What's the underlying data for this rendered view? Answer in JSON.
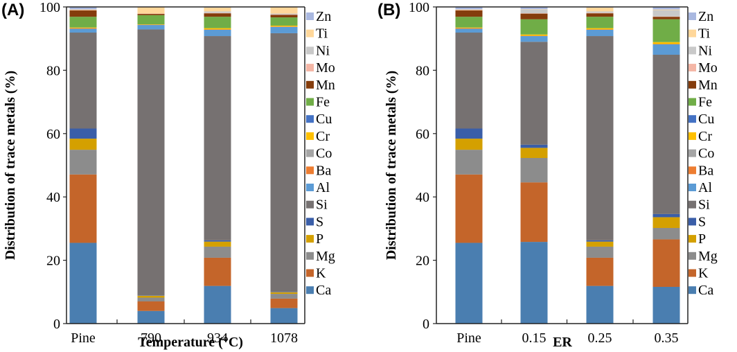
{
  "chart_data": [
    {
      "type": "bar",
      "stacked": true,
      "panel_label": "(A)",
      "title": "",
      "xlabel": "Temperature (°C)",
      "ylabel": "Distribution  of trace metals (%)",
      "ylim": [
        0,
        100
      ],
      "yticks": [
        "0",
        "20",
        "40",
        "60",
        "80",
        "100"
      ],
      "grid": false,
      "legend": "right",
      "categories": [
        "Pine",
        "790",
        "934",
        "1078"
      ],
      "series": [
        {
          "name": "Ca",
          "color": "#4a7eb0",
          "values": [
            25.5,
            4.0,
            11.9,
            4.9
          ]
        },
        {
          "name": "K",
          "color": "#c4652a",
          "values": [
            21.6,
            3.0,
            8.9,
            3.0
          ]
        },
        {
          "name": "Mg",
          "color": "#8c8c8c",
          "values": [
            7.8,
            1.2,
            3.5,
            1.5
          ]
        },
        {
          "name": "P",
          "color": "#d4a000",
          "values": [
            3.5,
            0.6,
            1.6,
            0.5
          ]
        },
        {
          "name": "S",
          "color": "#3a5ea8",
          "values": [
            3.2,
            0.1,
            0.4,
            0.1
          ]
        },
        {
          "name": "Si",
          "color": "#767171",
          "values": [
            30.3,
            84.0,
            64.5,
            81.7
          ]
        },
        {
          "name": "Al",
          "color": "#5b9bd5",
          "values": [
            1.2,
            1.4,
            2.0,
            2.0
          ]
        },
        {
          "name": "Ba",
          "color": "#ed7d31",
          "values": [
            0.2,
            0.1,
            0.1,
            0.1
          ]
        },
        {
          "name": "Co",
          "color": "#a5a5a5",
          "values": [
            0.0,
            0.0,
            0.0,
            0.0
          ]
        },
        {
          "name": "Cr",
          "color": "#ffc000",
          "values": [
            0.2,
            0.1,
            0.4,
            0.3
          ]
        },
        {
          "name": "Cu",
          "color": "#4472c4",
          "values": [
            0.0,
            0.0,
            0.0,
            0.0
          ]
        },
        {
          "name": "Fe",
          "color": "#70ad47",
          "values": [
            3.4,
            2.9,
            3.6,
            2.6
          ]
        },
        {
          "name": "Mn",
          "color": "#843c0c",
          "values": [
            2.0,
            0.4,
            1.1,
            0.8
          ]
        },
        {
          "name": "Mo",
          "color": "#f4b6a6",
          "values": [
            0.1,
            0.1,
            0.1,
            0.1
          ]
        },
        {
          "name": "Ni",
          "color": "#c9c9c9",
          "values": [
            0.0,
            0.0,
            0.5,
            0.3
          ]
        },
        {
          "name": "Ti",
          "color": "#ffd79a",
          "values": [
            0.2,
            2.0,
            1.2,
            2.1
          ]
        },
        {
          "name": "Zn",
          "color": "#a9b8e0",
          "values": [
            0.8,
            0.2,
            0.2,
            0.0
          ]
        }
      ]
    },
    {
      "type": "bar",
      "stacked": true,
      "panel_label": "(B)",
      "title": "",
      "xlabel": "ER",
      "ylabel": "Distribution  of trace metals (%)",
      "ylim": [
        0,
        100
      ],
      "yticks": [
        "0",
        "20",
        "40",
        "60",
        "80",
        "100"
      ],
      "grid": false,
      "legend": "right",
      "categories": [
        "Pine",
        "0.15",
        "0.25",
        "0.35"
      ],
      "series": [
        {
          "name": "Ca",
          "color": "#4a7eb0",
          "values": [
            25.5,
            25.8,
            11.9,
            11.6
          ]
        },
        {
          "name": "K",
          "color": "#c4652a",
          "values": [
            21.6,
            18.8,
            8.9,
            15.0
          ]
        },
        {
          "name": "Mg",
          "color": "#8c8c8c",
          "values": [
            7.8,
            7.7,
            3.5,
            3.6
          ]
        },
        {
          "name": "P",
          "color": "#d4a000",
          "values": [
            3.5,
            3.2,
            1.6,
            3.4
          ]
        },
        {
          "name": "S",
          "color": "#3a5ea8",
          "values": [
            3.2,
            1.0,
            0.4,
            1.0
          ]
        },
        {
          "name": "Si",
          "color": "#767171",
          "values": [
            30.3,
            32.5,
            64.5,
            50.3
          ]
        },
        {
          "name": "Al",
          "color": "#5b9bd5",
          "values": [
            1.2,
            1.8,
            2.0,
            3.3
          ]
        },
        {
          "name": "Ba",
          "color": "#ed7d31",
          "values": [
            0.2,
            0.1,
            0.1,
            0.1
          ]
        },
        {
          "name": "Co",
          "color": "#a5a5a5",
          "values": [
            0.0,
            0.0,
            0.0,
            0.0
          ]
        },
        {
          "name": "Cr",
          "color": "#ffc000",
          "values": [
            0.2,
            0.4,
            0.4,
            0.6
          ]
        },
        {
          "name": "Cu",
          "color": "#4472c4",
          "values": [
            0.0,
            0.0,
            0.0,
            0.0
          ]
        },
        {
          "name": "Fe",
          "color": "#70ad47",
          "values": [
            3.4,
            4.8,
            3.6,
            7.2
          ]
        },
        {
          "name": "Mn",
          "color": "#843c0c",
          "values": [
            2.0,
            1.8,
            1.1,
            0.8
          ]
        },
        {
          "name": "Mo",
          "color": "#f4b6a6",
          "values": [
            0.1,
            0.1,
            0.1,
            0.1
          ]
        },
        {
          "name": "Ni",
          "color": "#c9c9c9",
          "values": [
            0.0,
            1.2,
            0.5,
            2.0
          ]
        },
        {
          "name": "Ti",
          "color": "#ffd79a",
          "values": [
            0.2,
            0.1,
            1.2,
            0.2
          ]
        },
        {
          "name": "Zn",
          "color": "#a9b8e0",
          "values": [
            0.8,
            0.7,
            0.2,
            0.8
          ]
        }
      ]
    }
  ],
  "legend_order": [
    "Zn",
    "Ti",
    "Ni",
    "Mo",
    "Mn",
    "Fe",
    "Cu",
    "Cr",
    "Co",
    "Ba",
    "Al",
    "Si",
    "S",
    "P",
    "Mg",
    "K",
    "Ca"
  ]
}
